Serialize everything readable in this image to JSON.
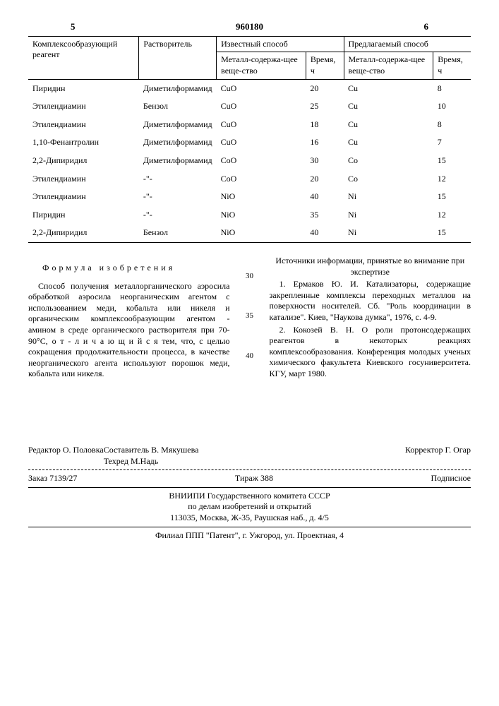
{
  "header": {
    "left_page": "5",
    "doc_number": "960180",
    "right_page": "6"
  },
  "table": {
    "columns": {
      "reagent": "Комплексообразующий реагент",
      "solvent": "Растворитель",
      "known": "Известный способ",
      "proposed": "Предлагаемый способ",
      "substance": "Металл-содержа-щее веще-ство",
      "time": "Время, ч"
    },
    "rows": [
      {
        "reagent": "Пиридин",
        "solvent": "Диметилформамид",
        "k_sub": "CuO",
        "k_t": "20",
        "p_sub": "Cu",
        "p_t": "8"
      },
      {
        "reagent": "Этилендиамин",
        "solvent": "Бензол",
        "k_sub": "CuO",
        "k_t": "25",
        "p_sub": "Cu",
        "p_t": "10"
      },
      {
        "reagent": "Этилендиамин",
        "solvent": "Диметилформамид",
        "k_sub": "CuO",
        "k_t": "18",
        "p_sub": "Cu",
        "p_t": "8"
      },
      {
        "reagent": "1,10-Фенантролин",
        "solvent": "Диметилформамид",
        "k_sub": "CuO",
        "k_t": "16",
        "p_sub": "Cu",
        "p_t": "7"
      },
      {
        "reagent": "2,2-Дипиридил",
        "solvent": "Диметилформамид",
        "k_sub": "CoO",
        "k_t": "30",
        "p_sub": "Co",
        "p_t": "15"
      },
      {
        "reagent": "Этилендиамин",
        "solvent": "-\"-",
        "k_sub": "CoO",
        "k_t": "20",
        "p_sub": "Co",
        "p_t": "12"
      },
      {
        "reagent": "Этилендиамин",
        "solvent": "-\"-",
        "k_sub": "NiO",
        "k_t": "40",
        "p_sub": "Ni",
        "p_t": "15"
      },
      {
        "reagent": "Пиридин",
        "solvent": "-\"-",
        "k_sub": "NiO",
        "k_t": "35",
        "p_sub": "Ni",
        "p_t": "12"
      },
      {
        "reagent": "2,2-Дипиридил",
        "solvent": "Бензол",
        "k_sub": "NiO",
        "k_t": "40",
        "p_sub": "Ni",
        "p_t": "15"
      }
    ]
  },
  "formula_title": "Формула изобретения",
  "left_text": "Способ получения металлорганического аэросила обработкой аэросила неорганическим агентом с использованием меди, кобальта или никеля и органическим комплексообразующим агентом - амином в среде органического растворителя при 70-90°С, о т - л и ч а ю щ и й с я  тем, что, с целью сокращения продолжительности процесса, в качестве неорганического агента используют порошок меди, кобальта или никеля.",
  "right_section_title": "Источники информации, принятые во внимание при экспертизе",
  "ref1": "1. Ермаков Ю. И. Катализаторы, содержащие закрепленные комплексы переходных металлов на поверхности носителей. Сб. \"Роль координации в катализе\". Киев, \"Наукова думка\", 1976, с. 4-9.",
  "ref2": "2. Кокозей В. Н. О роли протонсодержащих реагентов в некоторых реакциях комплексообразования. Конференция молодых ученых химического факультета Киевского госуниверситета. КГУ, март 1980.",
  "line_nums": {
    "n30": "30",
    "n35": "35",
    "n40": "40"
  },
  "footer": {
    "editor_lbl": "Редактор",
    "editor": "О. Половка",
    "compiler_lbl": "Составитель",
    "compiler": "В. Мякушева",
    "tech_lbl": "Техред",
    "tech": "М.Надь",
    "corr_lbl": "Корректор",
    "corr": "Г. Огар",
    "order_lbl": "Заказ",
    "order": "7139/27",
    "tirazh_lbl": "Тираж",
    "tirazh": "388",
    "podpis": "Подписное",
    "org1": "ВНИИПИ Государственного комитета СССР",
    "org2": "по делам изобретений и открытий",
    "addr1": "113035, Москва, Ж-35, Раушская наб., д. 4/5",
    "addr2": "Филиал ППП \"Патент\", г. Ужгород, ул. Проектная, 4"
  }
}
